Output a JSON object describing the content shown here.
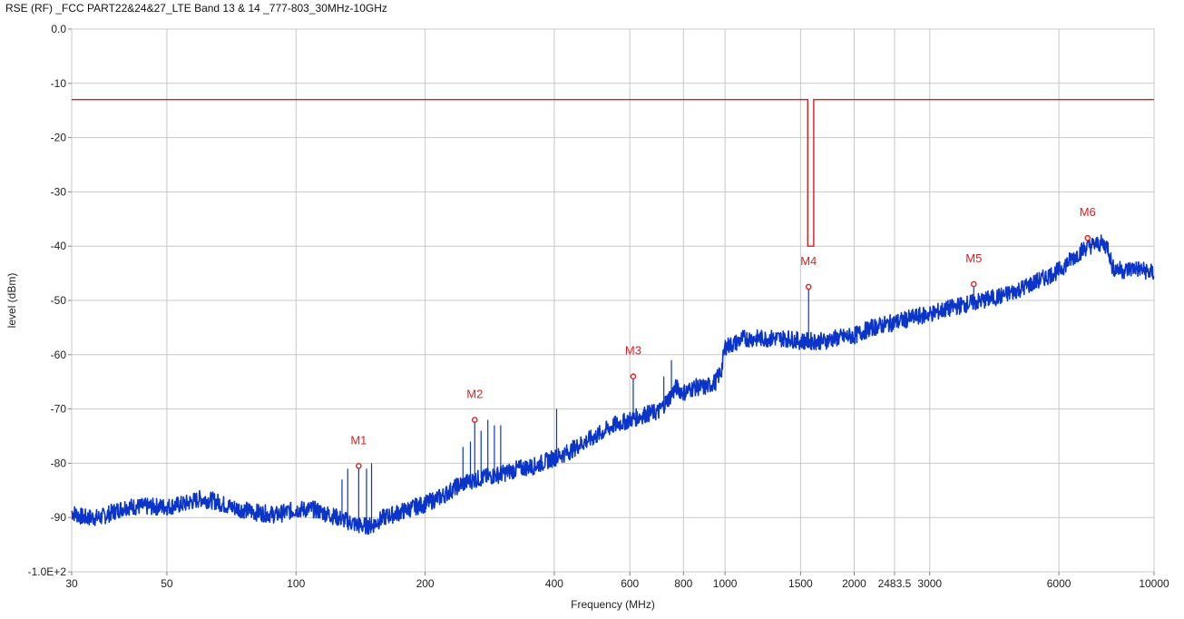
{
  "chart_data": {
    "type": "line",
    "title": "RSE (RF)  _FCC PART22&24&27_LTE Band 13 & 14 _777-803_30MHz-10GHz",
    "xlabel": "Frequency (MHz)",
    "ylabel": "level (dBm)",
    "x_scale": "log",
    "xlim": [
      30,
      10000
    ],
    "ylim": [
      -100,
      0
    ],
    "grid": true,
    "x_ticks": [
      30,
      50,
      100,
      200,
      400,
      600,
      800,
      1000,
      1500,
      2000,
      2483.5,
      3000,
      6000,
      10000
    ],
    "x_tick_labels": [
      "30",
      "50",
      "100",
      "200",
      "400",
      "600",
      "800",
      "1000",
      "1500",
      "2000",
      "2483.5",
      "3000",
      "6000",
      "10000"
    ],
    "y_ticks": [
      0,
      -10,
      -20,
      -30,
      -40,
      -50,
      -60,
      -70,
      -80,
      -90,
      -100
    ],
    "y_tick_labels": [
      "0.0",
      "-10",
      "-20",
      "-30",
      "-40",
      "-50",
      "-60",
      "-70",
      "-80",
      "-90",
      "-1.0E+2"
    ],
    "series": [
      {
        "color": "#d42020",
        "x": [
          30,
          1559,
          1559,
          1610,
          1610,
          10000
        ],
        "values": [
          -13,
          -13,
          -40,
          -40,
          -13,
          -13
        ]
      },
      {
        "color": "#0a35c8",
        "x": [
          30,
          32,
          35,
          40,
          45,
          50,
          55,
          60,
          65,
          70,
          80,
          90,
          100,
          110,
          120,
          130,
          140,
          150,
          160,
          175,
          190,
          200,
          220,
          240,
          260,
          280,
          300,
          330,
          360,
          400,
          430,
          460,
          500,
          550,
          600,
          650,
          700,
          740,
          770,
          800,
          850,
          900,
          950,
          980,
          1000,
          1050,
          1100,
          1200,
          1300,
          1400,
          1500,
          1600,
          1700,
          1800,
          2000,
          2200,
          2500,
          2800,
          3000,
          3500,
          4000,
          4500,
          5000,
          5500,
          6000,
          6500,
          7000,
          7500,
          7800,
          8000,
          8500,
          9000,
          10000
        ],
        "values": [
          -89,
          -90,
          -90,
          -88,
          -88,
          -88,
          -87.5,
          -86.5,
          -87,
          -88,
          -89,
          -89.5,
          -88.5,
          -88.5,
          -89.5,
          -90.5,
          -91.5,
          -91.5,
          -90,
          -89,
          -88,
          -87.5,
          -86,
          -84,
          -83,
          -82.5,
          -82,
          -81,
          -80.5,
          -79,
          -78,
          -76.5,
          -75,
          -73,
          -72,
          -71,
          -70.5,
          -68,
          -66,
          -67,
          -66,
          -66,
          -65,
          -63,
          -58.5,
          -58,
          -57,
          -57,
          -57,
          -57,
          -57.5,
          -57.5,
          -57.5,
          -57,
          -56.5,
          -55,
          -54,
          -53,
          -52.5,
          -51,
          -50,
          -49,
          -47.5,
          -46,
          -44.5,
          -42,
          -40,
          -39.5,
          -40,
          -44,
          -44.5,
          -44,
          -45
        ]
      }
    ],
    "markers": [
      {
        "label": "M1",
        "x": 140,
        "y": -80.5
      },
      {
        "label": "M2",
        "x": 261,
        "y": -72
      },
      {
        "label": "M3",
        "x": 611,
        "y": -64
      },
      {
        "label": "M4",
        "x": 1566,
        "y": -47.5
      },
      {
        "label": "M5",
        "x": 3800,
        "y": -47
      },
      {
        "label": "M6",
        "x": 7000,
        "y": -38.5
      }
    ]
  }
}
